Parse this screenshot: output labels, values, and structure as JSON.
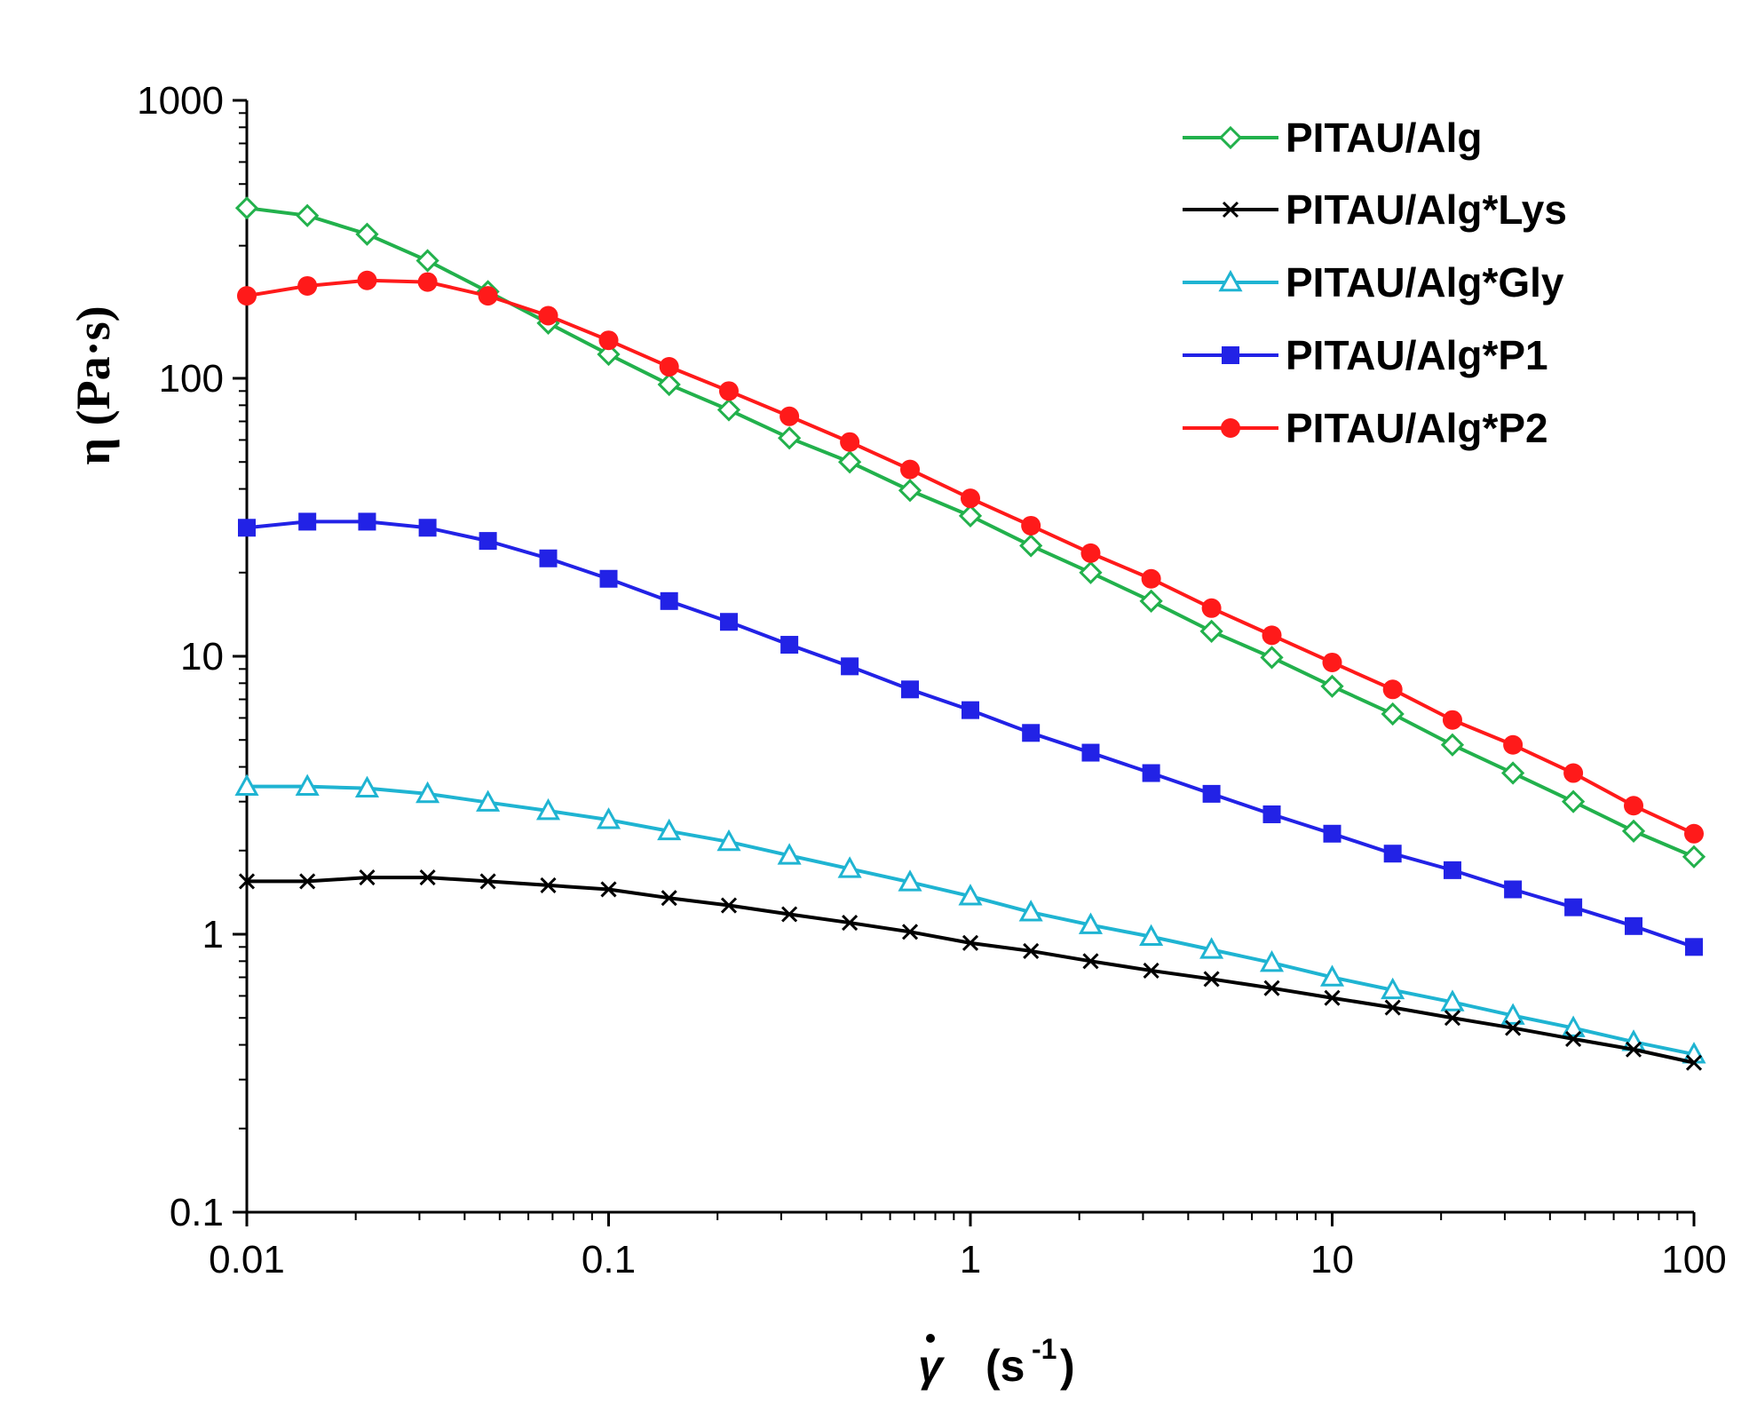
{
  "chart_data": {
    "type": "line",
    "title": "",
    "xlabel": "γ̇ (s-1)",
    "ylabel": "η (Pa·s)",
    "xlabel_parts": {
      "symbol": "γ",
      "unit_base": "(s",
      "unit_exp": "-1",
      "unit_close": ")"
    },
    "x_scale": "log",
    "y_scale": "log",
    "xlim": [
      0.01,
      100
    ],
    "ylim": [
      0.1,
      1000
    ],
    "x_ticks": [
      "0.01",
      "0.1",
      "1",
      "10",
      "100"
    ],
    "y_ticks": [
      "0.1",
      "1",
      "10",
      "100",
      "1000"
    ],
    "grid": false,
    "legend_position": "top-right",
    "x": [
      0.01,
      0.0147,
      0.0215,
      0.0316,
      0.0464,
      0.0681,
      0.1,
      0.147,
      0.215,
      0.316,
      0.464,
      0.681,
      1,
      1.47,
      2.15,
      3.16,
      4.64,
      6.81,
      10,
      14.7,
      21.5,
      31.6,
      46.4,
      68.1,
      100
    ],
    "series": [
      {
        "name": "PITAU/Alg",
        "color": "#22b14c",
        "marker": "diamond-open",
        "values": [
          410,
          385,
          330,
          265,
          205,
          158,
          122,
          95,
          77,
          61,
          50,
          39.5,
          32,
          25,
          20,
          15.8,
          12.3,
          9.9,
          7.8,
          6.2,
          4.8,
          3.8,
          3.0,
          2.35,
          1.9
        ]
      },
      {
        "name": "PITAU/Alg*Lys",
        "color": "#000000",
        "marker": "x",
        "values": [
          1.55,
          1.55,
          1.6,
          1.6,
          1.55,
          1.5,
          1.45,
          1.35,
          1.27,
          1.18,
          1.1,
          1.02,
          0.93,
          0.87,
          0.8,
          0.74,
          0.69,
          0.64,
          0.59,
          0.545,
          0.5,
          0.46,
          0.42,
          0.385,
          0.345
        ]
      },
      {
        "name": "PITAU/Alg*Gly",
        "color": "#1fb4d2",
        "marker": "triangle-open",
        "values": [
          3.4,
          3.4,
          3.35,
          3.2,
          2.98,
          2.78,
          2.58,
          2.35,
          2.15,
          1.92,
          1.72,
          1.54,
          1.37,
          1.2,
          1.08,
          0.98,
          0.88,
          0.79,
          0.7,
          0.63,
          0.57,
          0.51,
          0.46,
          0.41,
          0.37
        ]
      },
      {
        "name": "PITAU/Alg*P1",
        "color": "#2222e6",
        "marker": "square",
        "values": [
          29,
          30.5,
          30.5,
          29,
          26,
          22.5,
          19,
          15.8,
          13.3,
          11,
          9.2,
          7.6,
          6.4,
          5.3,
          4.5,
          3.8,
          3.2,
          2.7,
          2.3,
          1.95,
          1.7,
          1.45,
          1.25,
          1.07,
          0.9
        ]
      },
      {
        "name": "PITAU/Alg*P2",
        "color": "#ff1a1a",
        "marker": "circle",
        "values": [
          198,
          215,
          225,
          222,
          198,
          168,
          137,
          110,
          90,
          73,
          59,
          47,
          37,
          29.5,
          23.5,
          19,
          14.9,
          11.9,
          9.5,
          7.6,
          5.9,
          4.8,
          3.8,
          2.9,
          2.3
        ]
      }
    ]
  }
}
